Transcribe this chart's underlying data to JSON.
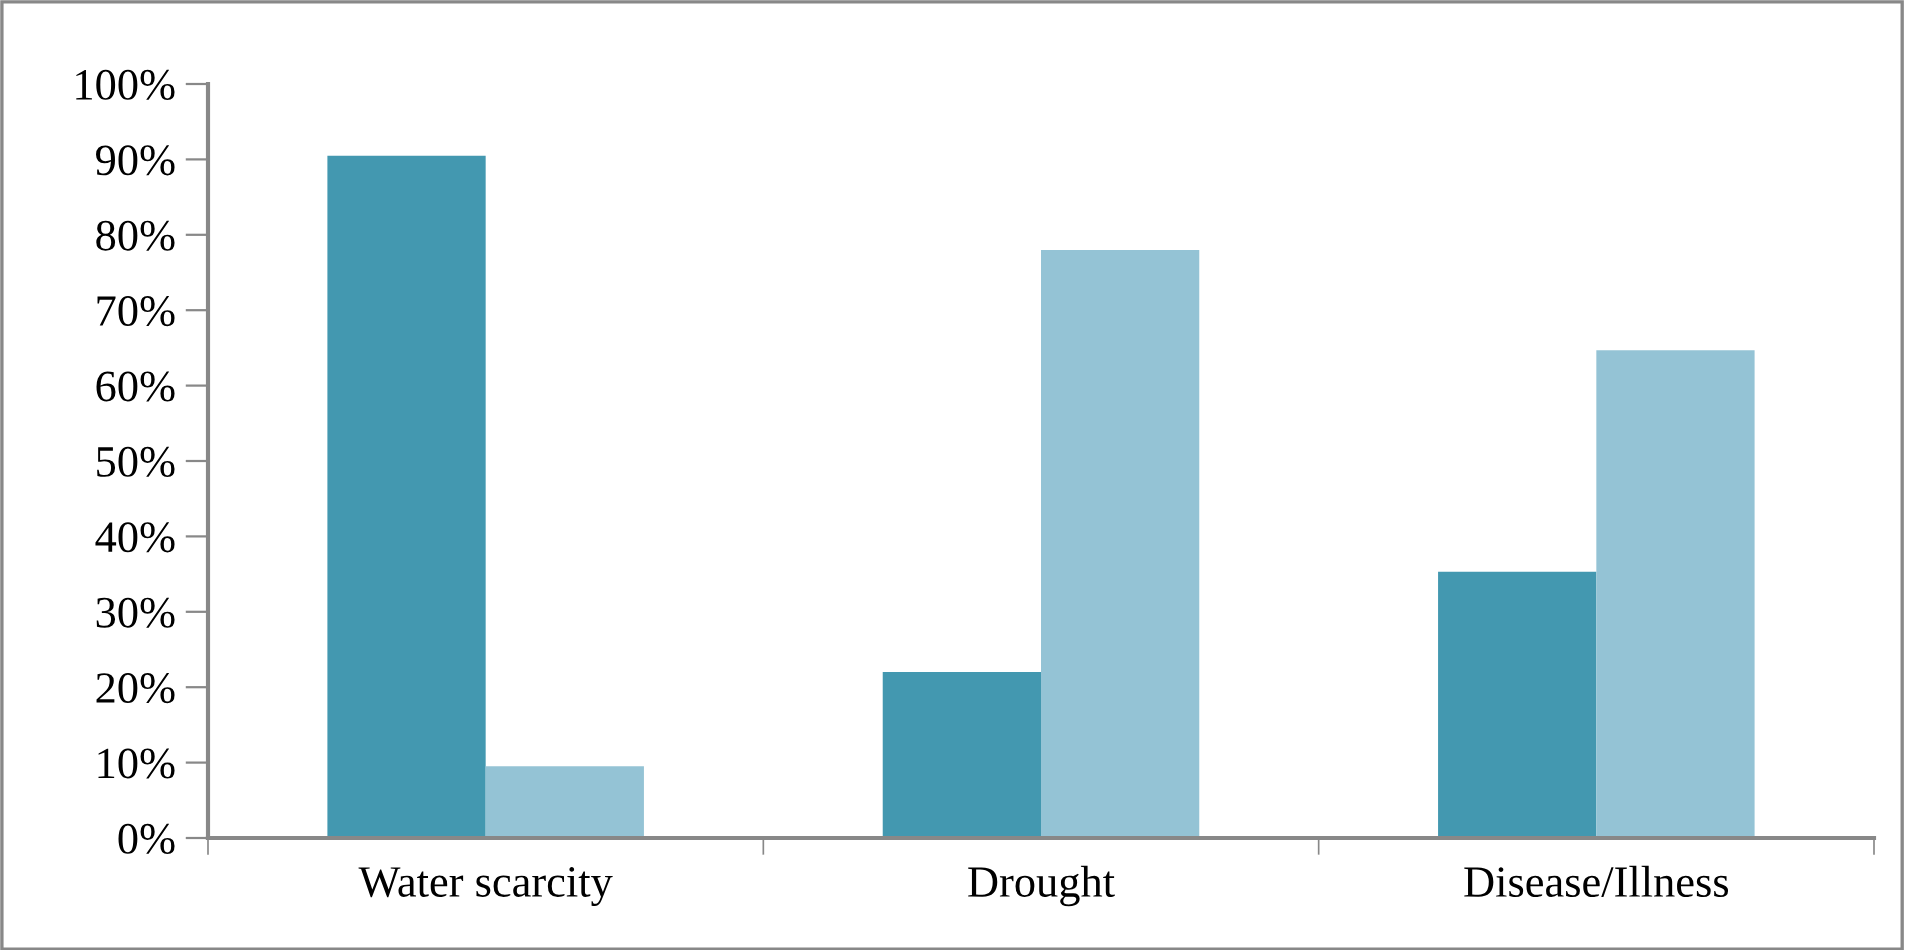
{
  "chart_data": {
    "type": "bar",
    "categories": [
      "Water scarcity",
      "Drought",
      "Disease/Illness"
    ],
    "series": [
      {
        "color": "#4398b0",
        "values": [
          90.5,
          22,
          35.3
        ]
      },
      {
        "color": "#94c3d5",
        "values": [
          9.5,
          78,
          64.7
        ]
      }
    ],
    "ylim": [
      0,
      100
    ],
    "yticks": [
      {
        "value": 0,
        "label": "0%"
      },
      {
        "value": 10,
        "label": "10%"
      },
      {
        "value": 20,
        "label": "20%"
      },
      {
        "value": 30,
        "label": "30%"
      },
      {
        "value": 40,
        "label": "40%"
      },
      {
        "value": 50,
        "label": "50%"
      },
      {
        "value": 60,
        "label": "60%"
      },
      {
        "value": 70,
        "label": "70%"
      },
      {
        "value": 80,
        "label": "80%"
      },
      {
        "value": 90,
        "label": "90%"
      },
      {
        "value": 100,
        "label": "100%"
      }
    ],
    "grid": false,
    "legend": false
  }
}
